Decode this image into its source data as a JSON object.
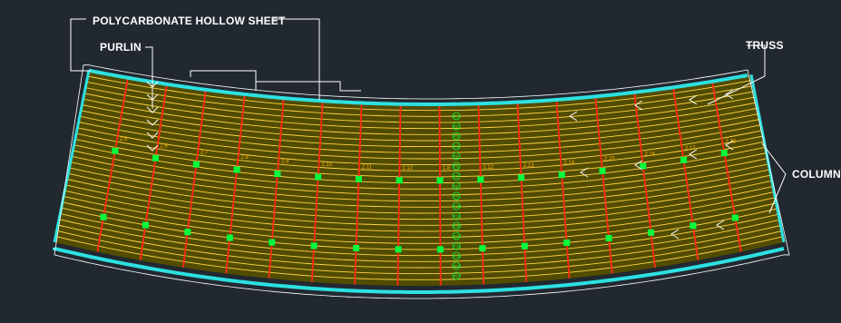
{
  "labels": {
    "polycarbonate": "POLYCARBONATE HOLLOW SHEET",
    "purlin": "PURLIN",
    "truss": "TRUSS",
    "column": "COLUMN"
  },
  "truss_tags": [
    "2.5",
    "2.6",
    "2.7",
    "2.8",
    "2.9",
    "2.10",
    "2.11",
    "2.12",
    "1.8",
    "2.12",
    "2.13",
    "2.14",
    "2.15",
    "2.16",
    "2.17",
    "2.18"
  ],
  "center_tags": [
    "P1",
    "P2",
    "P3",
    "P4",
    "P5",
    "P6",
    "P7",
    "P8",
    "P9",
    "P10",
    "P11",
    "P12",
    "P13",
    "P14",
    "P15",
    "P16",
    "P17"
  ],
  "colors": {
    "background": "#212830",
    "sheet_fill": "#514c00",
    "purlin_line": "#ffd24a",
    "truss_line": "#ff2a12",
    "edge_beam": "#2de1e1",
    "column_marker": "#00ff3c",
    "annotation": "#ffffff"
  }
}
